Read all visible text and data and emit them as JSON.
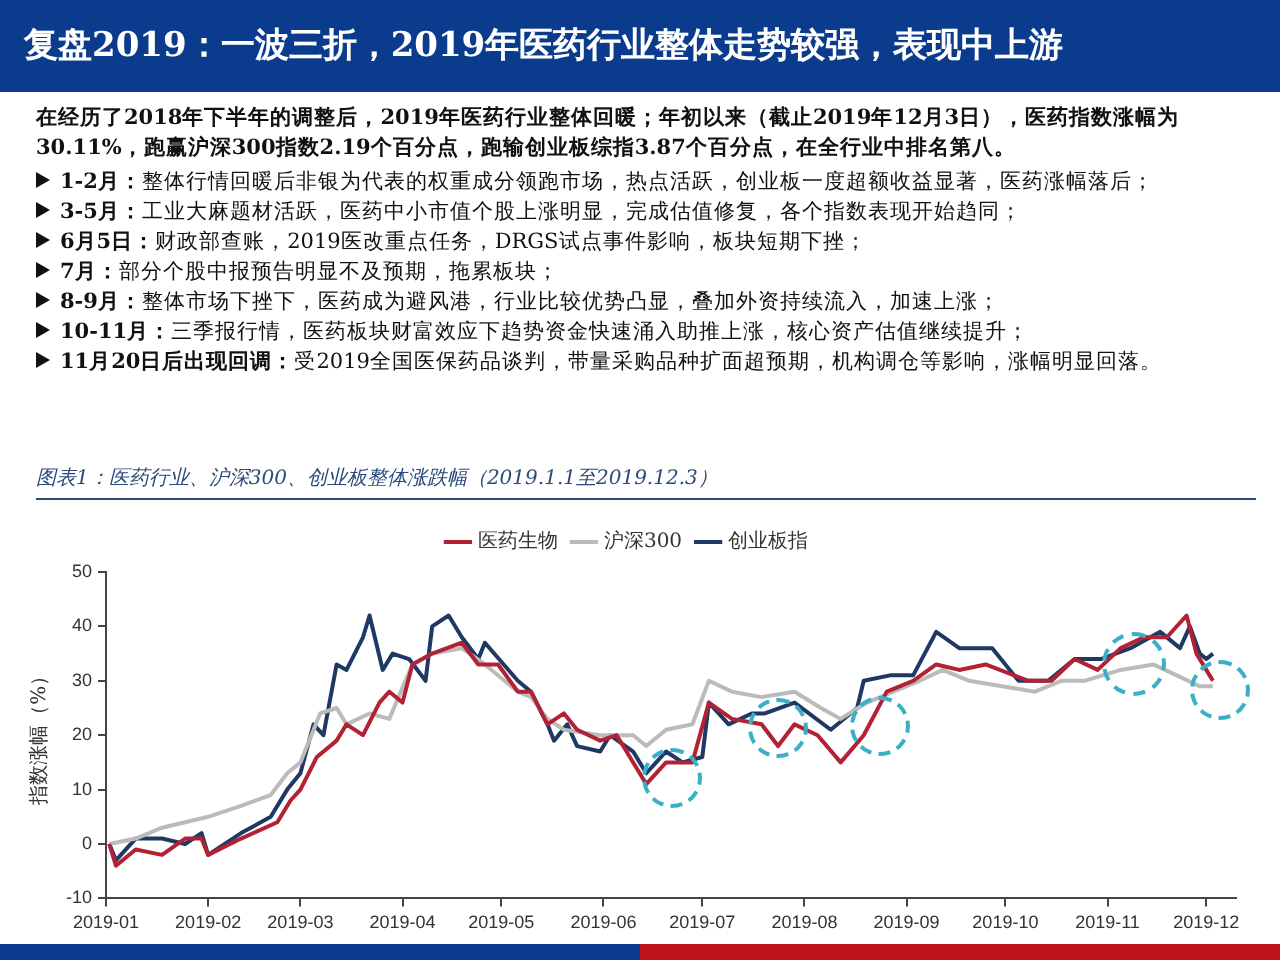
{
  "chart_data": {
    "type": "line",
    "title": "复盘2019：一波三折，2019年医药行业整体走势较强，表现中上游",
    "annotations": [
      "在经历了2018年下半年的调整后，2019年医药行业整体回暖；年初以来（截止2019年12月3日），医药指数涨幅为30.11%，跑赢沪深300指数2.19个百分点，跑输创业板综指3.87个百分点，在全行业中排名第八。",
      "1-2月：整体行情回暖后非银为代表的权重成分领跑市场，热点活跃，创业板一度超额收益显著，医药涨幅落后；",
      "3-5月：工业大麻题材活跃，医药中小市值个股上涨明显，完成估值修复，各个指数表现开始趋同；",
      "6月5日：财政部查账，2019医改重点任务，DRGS试点事件影响，板块短期下挫；",
      "7月：部分个股中报预告明显不及预期，拖累板块；",
      "8-9月：整体市场下挫下，医药成为避风港，行业比较优势凸显，叠加外资持续流入，加速上涨；",
      "10-11月：三季报行情，医药板块财富效应下趋势资金快速涌入助推上涨，核心资产估值继续提升；",
      "11月20日后出现回调：受2019全国医保药品谈判，带量采购品种扩面超预期，机构调仓等影响，涨幅明显回落。",
      "图表1：医药行业、沪深300、创业板整体涨跌幅（2019.1.1至2019.12.3）"
    ],
    "ylabel": "指数涨幅（%）",
    "xlim": [
      "2019-01-01",
      "2019-12-10"
    ],
    "xticks": [
      "2019-01",
      "2019-02",
      "2019-03",
      "2019-04",
      "2019-05",
      "2019-06",
      "2019-07",
      "2019-08",
      "2019-09",
      "2019-10",
      "2019-11",
      "2019-12"
    ],
    "ylim": [
      -10,
      50
    ],
    "yticks": [
      -10,
      0,
      10,
      20,
      30,
      40,
      50
    ],
    "grid": false,
    "legend": "top",
    "marker": "none",
    "line_style": "solid",
    "series": [
      {
        "name": "医药生物",
        "color": "#b22234",
        "x": [
          "2019-01-02",
          "2019-01-04",
          "2019-01-10",
          "2019-01-18",
          "2019-01-25",
          "2019-01-30",
          "2019-02-01",
          "2019-02-11",
          "2019-02-22",
          "2019-02-26",
          "2019-03-01",
          "2019-03-06",
          "2019-03-12",
          "2019-03-15",
          "2019-03-20",
          "2019-03-25",
          "2019-03-28",
          "2019-04-01",
          "2019-04-04",
          "2019-04-10",
          "2019-04-19",
          "2019-04-24",
          "2019-04-30",
          "2019-05-06",
          "2019-05-10",
          "2019-05-15",
          "2019-05-20",
          "2019-05-24",
          "2019-05-31",
          "2019-06-05",
          "2019-06-12",
          "2019-06-14",
          "2019-06-20",
          "2019-06-28",
          "2019-07-03",
          "2019-07-10",
          "2019-07-19",
          "2019-07-24",
          "2019-07-29",
          "2019-08-05",
          "2019-08-12",
          "2019-08-19",
          "2019-08-26",
          "2019-09-03",
          "2019-09-10",
          "2019-09-17",
          "2019-09-25",
          "2019-10-08",
          "2019-10-15",
          "2019-10-22",
          "2019-10-29",
          "2019-11-05",
          "2019-11-12",
          "2019-11-19",
          "2019-11-25",
          "2019-11-28",
          "2019-12-02",
          "2019-12-03"
        ],
        "values": [
          0,
          -4,
          -1,
          -2,
          1,
          1,
          -2,
          1,
          4,
          8,
          10,
          16,
          19,
          22,
          20,
          26,
          28,
          26,
          33,
          35,
          37,
          33,
          33,
          28,
          28,
          22,
          24,
          21,
          19,
          20,
          13,
          11,
          15,
          15,
          26,
          23,
          22,
          18,
          22,
          20,
          15,
          20,
          28,
          30,
          33,
          32,
          33,
          30,
          30,
          34,
          32,
          36,
          38,
          38,
          42,
          35,
          31,
          30
        ]
      },
      {
        "name": "沪深300",
        "color": "#bbbbbb",
        "x": [
          "2019-01-02",
          "2019-01-10",
          "2019-01-18",
          "2019-01-25",
          "2019-02-01",
          "2019-02-11",
          "2019-02-20",
          "2019-02-25",
          "2019-03-01",
          "2019-03-07",
          "2019-03-12",
          "2019-03-15",
          "2019-03-22",
          "2019-03-28",
          "2019-04-04",
          "2019-04-10",
          "2019-04-19",
          "2019-04-26",
          "2019-05-06",
          "2019-05-10",
          "2019-05-15",
          "2019-05-20",
          "2019-05-31",
          "2019-06-10",
          "2019-06-14",
          "2019-06-20",
          "2019-06-28",
          "2019-07-03",
          "2019-07-10",
          "2019-07-19",
          "2019-07-29",
          "2019-08-06",
          "2019-08-12",
          "2019-08-20",
          "2019-08-28",
          "2019-09-05",
          "2019-09-12",
          "2019-09-20",
          "2019-09-30",
          "2019-10-10",
          "2019-10-18",
          "2019-10-25",
          "2019-11-05",
          "2019-11-15",
          "2019-11-22",
          "2019-11-29",
          "2019-12-03"
        ],
        "values": [
          0,
          1,
          3,
          4,
          5,
          7,
          9,
          13,
          15,
          24,
          25,
          22,
          24,
          23,
          33,
          35,
          36,
          33,
          28,
          27,
          23,
          21,
          20,
          20,
          18,
          21,
          22,
          30,
          28,
          27,
          28,
          25,
          23,
          26,
          28,
          30,
          32,
          30,
          29,
          28,
          30,
          30,
          32,
          33,
          31,
          29,
          29
        ]
      },
      {
        "name": "创业板指",
        "color": "#1f3864",
        "x": [
          "2019-01-02",
          "2019-01-04",
          "2019-01-10",
          "2019-01-18",
          "2019-01-25",
          "2019-01-30",
          "2019-02-01",
          "2019-02-11",
          "2019-02-20",
          "2019-02-25",
          "2019-03-01",
          "2019-03-05",
          "2019-03-08",
          "2019-03-12",
          "2019-03-15",
          "2019-03-20",
          "2019-03-22",
          "2019-03-26",
          "2019-03-29",
          "2019-04-03",
          "2019-04-08",
          "2019-04-10",
          "2019-04-15",
          "2019-04-19",
          "2019-04-24",
          "2019-04-26",
          "2019-05-06",
          "2019-05-10",
          "2019-05-15",
          "2019-05-17",
          "2019-05-21",
          "2019-05-24",
          "2019-05-31",
          "2019-06-03",
          "2019-06-10",
          "2019-06-14",
          "2019-06-20",
          "2019-06-25",
          "2019-07-01",
          "2019-07-03",
          "2019-07-09",
          "2019-07-16",
          "2019-07-20",
          "2019-07-29",
          "2019-08-09",
          "2019-08-17",
          "2019-08-19",
          "2019-08-27",
          "2019-09-03",
          "2019-09-10",
          "2019-09-17",
          "2019-09-27",
          "2019-10-05",
          "2019-10-14",
          "2019-10-22",
          "2019-10-30",
          "2019-11-08",
          "2019-11-17",
          "2019-11-23",
          "2019-11-26",
          "2019-11-29",
          "2019-12-01",
          "2019-12-03"
        ],
        "values": [
          0,
          -3,
          1,
          1,
          0,
          2,
          -2,
          2,
          5,
          10,
          13,
          22,
          20,
          33,
          32,
          38,
          42,
          32,
          35,
          34,
          30,
          40,
          42,
          38,
          34,
          37,
          30,
          28,
          22,
          19,
          22,
          18,
          17,
          20,
          17,
          13,
          17,
          15,
          16,
          26,
          22,
          24,
          24,
          26,
          21,
          25,
          30,
          31,
          31,
          39,
          36,
          36,
          30,
          30,
          34,
          34,
          36,
          39,
          36,
          40,
          35,
          34,
          35
        ]
      }
    ]
  }
}
